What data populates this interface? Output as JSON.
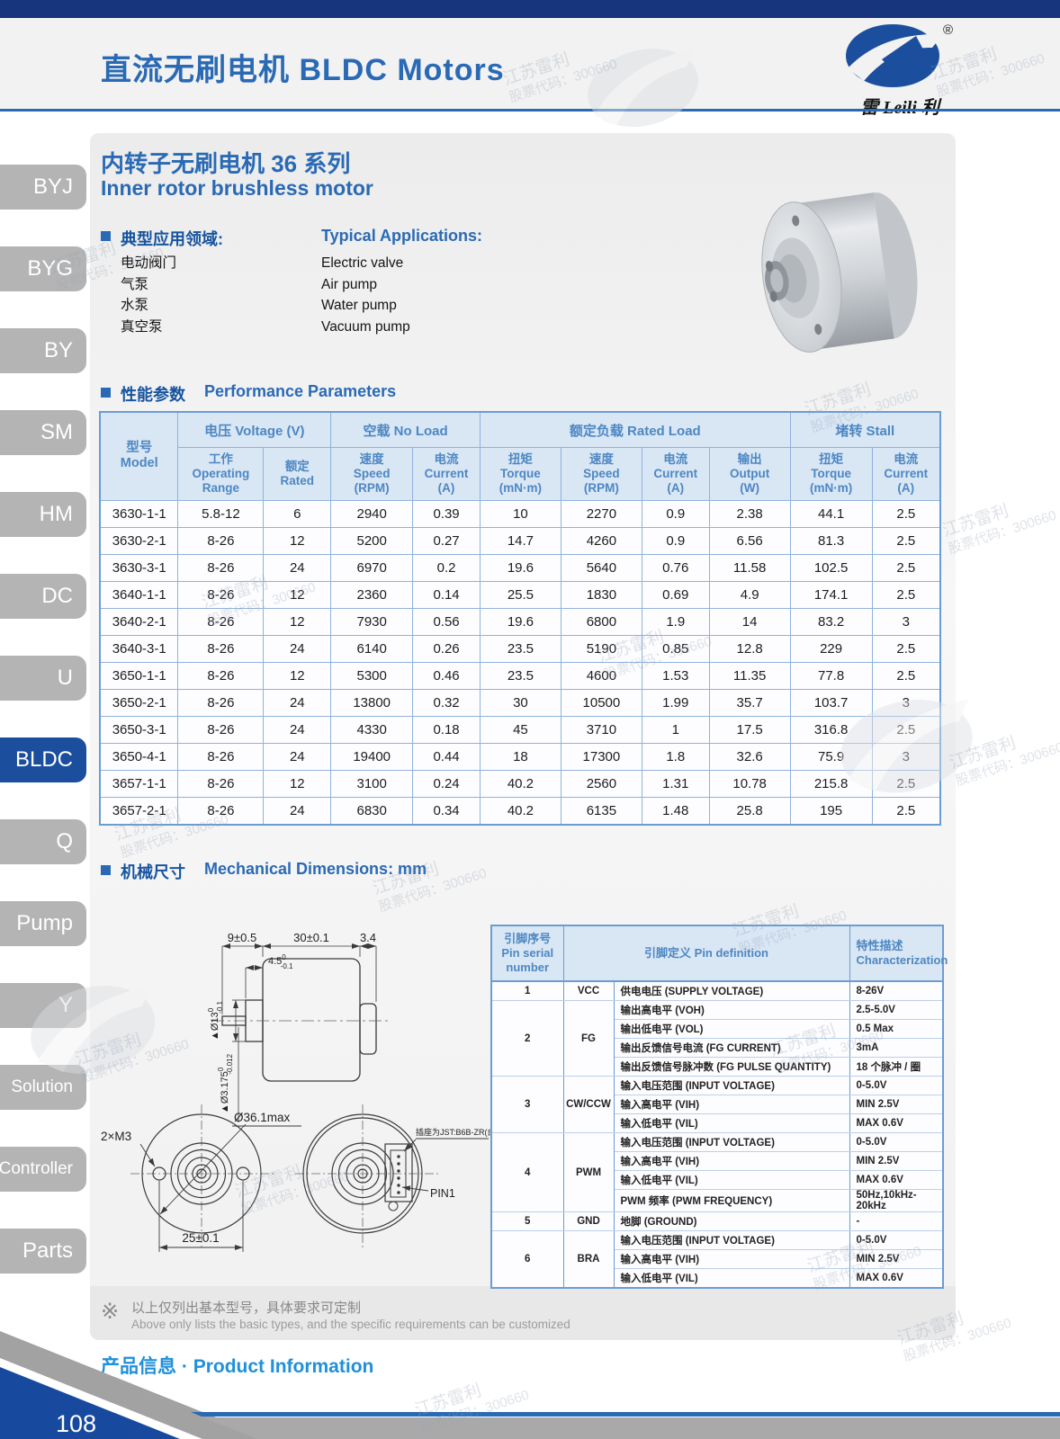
{
  "header": {
    "title_zh": "直流无刷电机",
    "title_en": "BLDC Motors",
    "registered": "®",
    "logo_text": "雷 Leili 利"
  },
  "sidebar": {
    "items": [
      {
        "label": "BYJ",
        "active": false
      },
      {
        "label": "BYG",
        "active": false
      },
      {
        "label": "BY",
        "active": false
      },
      {
        "label": "SM",
        "active": false
      },
      {
        "label": "HM",
        "active": false
      },
      {
        "label": "DC",
        "active": false
      },
      {
        "label": "U",
        "active": false
      },
      {
        "label": "BLDC",
        "active": true
      },
      {
        "label": "Q",
        "active": false
      },
      {
        "label": "Pump",
        "active": false
      },
      {
        "label": "Y",
        "active": false
      },
      {
        "label": "Solution",
        "active": false
      },
      {
        "label": "Controller",
        "active": false
      },
      {
        "label": "Parts",
        "active": false
      }
    ]
  },
  "product": {
    "series_title_zh": "内转子无刷电机 36 系列",
    "series_title_en": "Inner rotor brushless motor"
  },
  "applications": {
    "heading_zh": "典型应用领域:",
    "heading_en": "Typical Applications:",
    "items": [
      {
        "zh": "电动阀门",
        "en": "Electric valve"
      },
      {
        "zh": "气泵",
        "en": "Air pump"
      },
      {
        "zh": "水泵",
        "en": "Water pump"
      },
      {
        "zh": "真空泵",
        "en": "Vacuum pump"
      }
    ]
  },
  "performance": {
    "heading_zh": "性能参数",
    "heading_en": "Performance Parameters",
    "table": {
      "model_header": {
        "zh": "型号",
        "en": "Model"
      },
      "groups": [
        {
          "label": "电压 Voltage (V)",
          "span": 2
        },
        {
          "label": "空载 No Load",
          "span": 2
        },
        {
          "label": "额定负载 Rated Load",
          "span": 4
        },
        {
          "label": "堵转 Stall",
          "span": 2
        }
      ],
      "sub_headers": [
        {
          "zh": "工作",
          "en": "Operating\nRange"
        },
        {
          "zh": "额定",
          "en": "Rated"
        },
        {
          "zh": "速度",
          "en": "Speed\n(RPM)"
        },
        {
          "zh": "电流",
          "en": "Current\n(A)"
        },
        {
          "zh": "扭矩",
          "en": "Torque\n(mN·m)"
        },
        {
          "zh": "速度",
          "en": "Speed\n(RPM)"
        },
        {
          "zh": "电流",
          "en": "Current\n(A)"
        },
        {
          "zh": "输出",
          "en": "Output\n(W)"
        },
        {
          "zh": "扭矩",
          "en": "Torque\n(mN·m)"
        },
        {
          "zh": "电流",
          "en": "Current\n(A)"
        }
      ],
      "rows": [
        [
          "3630-1-1",
          "5.8-12",
          "6",
          "2940",
          "0.39",
          "10",
          "2270",
          "0.9",
          "2.38",
          "44.1",
          "2.5"
        ],
        [
          "3630-2-1",
          "8-26",
          "12",
          "5200",
          "0.27",
          "14.7",
          "4260",
          "0.9",
          "6.56",
          "81.3",
          "2.5"
        ],
        [
          "3630-3-1",
          "8-26",
          "24",
          "6970",
          "0.2",
          "19.6",
          "5640",
          "0.76",
          "11.58",
          "102.5",
          "2.5"
        ],
        [
          "3640-1-1",
          "8-26",
          "12",
          "2360",
          "0.14",
          "25.5",
          "1830",
          "0.69",
          "4.9",
          "174.1",
          "2.5"
        ],
        [
          "3640-2-1",
          "8-26",
          "12",
          "7930",
          "0.56",
          "19.6",
          "6800",
          "1.9",
          "14",
          "83.2",
          "3"
        ],
        [
          "3640-3-1",
          "8-26",
          "24",
          "6140",
          "0.26",
          "23.5",
          "5190",
          "0.85",
          "12.8",
          "229",
          "2.5"
        ],
        [
          "3650-1-1",
          "8-26",
          "12",
          "5300",
          "0.46",
          "23.5",
          "4600",
          "1.53",
          "11.35",
          "77.8",
          "2.5"
        ],
        [
          "3650-2-1",
          "8-26",
          "24",
          "13800",
          "0.32",
          "30",
          "10500",
          "1.99",
          "35.7",
          "103.7",
          "3"
        ],
        [
          "3650-3-1",
          "8-26",
          "24",
          "4330",
          "0.18",
          "45",
          "3710",
          "1",
          "17.5",
          "316.8",
          "2.5"
        ],
        [
          "3650-4-1",
          "8-26",
          "24",
          "19400",
          "0.44",
          "18",
          "17300",
          "1.8",
          "32.6",
          "75.9",
          "3"
        ],
        [
          "3657-1-1",
          "8-26",
          "12",
          "3100",
          "0.24",
          "40.2",
          "2560",
          "1.31",
          "10.78",
          "215.8",
          "2.5"
        ],
        [
          "3657-2-1",
          "8-26",
          "24",
          "6830",
          "0.34",
          "40.2",
          "6135",
          "1.48",
          "25.8",
          "195",
          "2.5"
        ]
      ]
    }
  },
  "mechanical": {
    "heading_zh": "机械尺寸",
    "heading_en": "Mechanical Dimensions: mm",
    "drawing": {
      "dim_shaft_len": "9±0.5",
      "dim_body_len": "30±0.1",
      "dim_rear": "3.4",
      "dim_pilot_len": "4.5",
      "dim_pilot_len_tol_hi": "0",
      "dim_pilot_len_tol_lo": "-0.1",
      "dim_pilot_dia": "▲Ø13",
      "dim_pilot_dia_tol_hi": "0",
      "dim_pilot_dia_tol_lo": "-0.1",
      "dim_shaft_dia": "▲Ø3.175",
      "dim_shaft_dia_tol_hi": "0",
      "dim_shaft_dia_tol_lo": "-0.012",
      "dim_outer_dia": "Ø36.1max",
      "dim_holes": "2×M3",
      "dim_hole_pitch": "25±0.1",
      "connector_note": "插座为JST:B6B-ZR(白)",
      "pin1_label": "PIN1"
    }
  },
  "pin_table": {
    "headers": {
      "serial": {
        "zh": "引脚序号",
        "en": "Pin serial\nnumber"
      },
      "definition": {
        "zh": "引脚定义",
        "en": "Pin definition"
      },
      "characterization": {
        "zh": "特性描述",
        "en": "Characterization"
      }
    },
    "pins": [
      {
        "no": "1",
        "name": "VCC",
        "rows": [
          {
            "def": "供电电压 (SUPPLY VOLTAGE)",
            "char": "8-26V"
          }
        ]
      },
      {
        "no": "2",
        "name": "FG",
        "rows": [
          {
            "def": "输出高电平 (VOH)",
            "char": "2.5-5.0V"
          },
          {
            "def": "输出低电平 (VOL)",
            "char": "0.5 Max"
          },
          {
            "def": "输出反馈信号电流 (FG CURRENT)",
            "char": "3mA"
          },
          {
            "def": "输出反馈信号脉冲数 (FG PULSE QUANTITY)",
            "char": "18 个脉冲 / 圈"
          }
        ]
      },
      {
        "no": "3",
        "name": "CW/CCW",
        "rows": [
          {
            "def": "输入电压范围 (INPUT VOLTAGE)",
            "char": "0-5.0V"
          },
          {
            "def": "输入高电平 (VIH)",
            "char": "MIN 2.5V"
          },
          {
            "def": "输入低电平 (VIL)",
            "char": "MAX 0.6V"
          }
        ]
      },
      {
        "no": "4",
        "name": "PWM",
        "rows": [
          {
            "def": "输入电压范围 (INPUT VOLTAGE)",
            "char": "0-5.0V"
          },
          {
            "def": "输入高电平 (VIH)",
            "char": "MIN 2.5V"
          },
          {
            "def": "输入低电平 (VIL)",
            "char": "MAX 0.6V"
          },
          {
            "def": "PWM 频率 (PWM FREQUENCY)",
            "char": "50Hz,10kHz-20kHz"
          }
        ]
      },
      {
        "no": "5",
        "name": "GND",
        "rows": [
          {
            "def": "地脚 (GROUND)",
            "char": "-"
          }
        ]
      },
      {
        "no": "6",
        "name": "BRA",
        "rows": [
          {
            "def": "输入电压范围 (INPUT VOLTAGE)",
            "char": "0-5.0V"
          },
          {
            "def": "输入高电平 (VIH)",
            "char": "MIN 2.5V"
          },
          {
            "def": "输入低电平 (VIL)",
            "char": "MAX 0.6V"
          }
        ]
      }
    ]
  },
  "note": {
    "icon": "※",
    "line_zh": "以上仅列出基本型号，具体要求可定制",
    "line_en": "Above only lists the basic types, and the specific requirements can be customized"
  },
  "footer": {
    "label_zh": "产品信息",
    "separator": "·",
    "label_en": "Product Information",
    "page_number": "108"
  },
  "watermark": {
    "line1": "江苏雷利",
    "line2": "股票代码：300660"
  }
}
